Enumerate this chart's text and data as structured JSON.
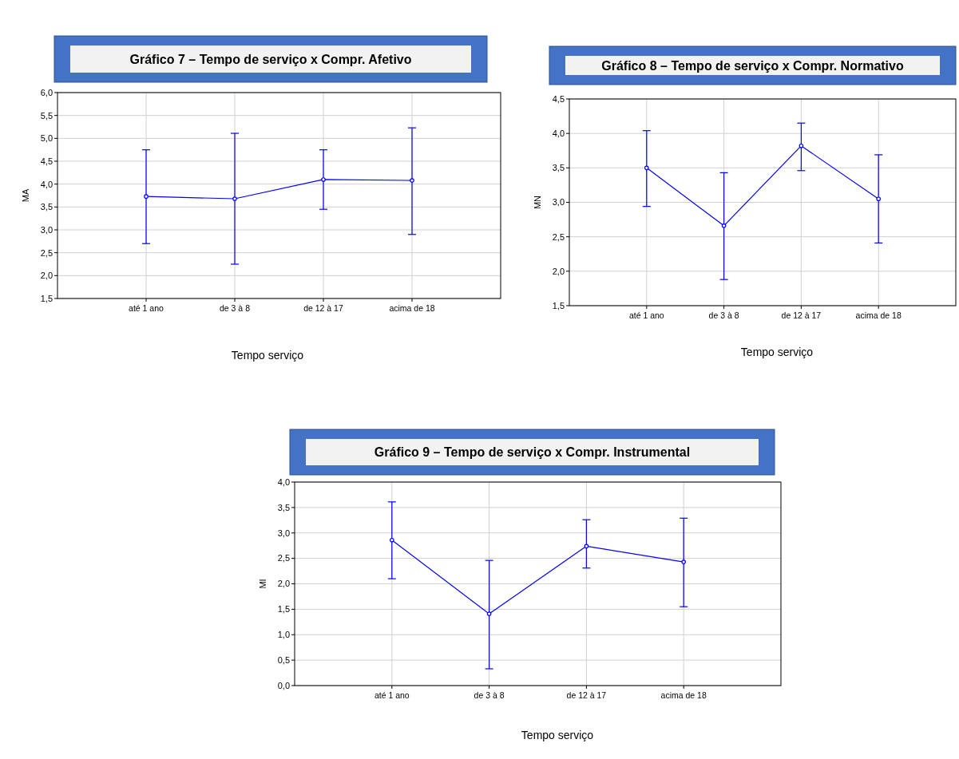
{
  "chart_data": [
    {
      "type": "line",
      "title": "Gráfico 7 – Tempo de serviço x Compr. Afetivo",
      "xlabel": "Tempo serviço",
      "ylabel": "MA",
      "categories": [
        "até 1 ano",
        "de 3 à 8",
        "de 12 à 17",
        "acima de 18"
      ],
      "series": [
        {
          "color": "#0000ff",
          "values": [
            3.73,
            3.68,
            4.1,
            4.08
          ],
          "errors": [
            [
              2.7,
              4.75
            ],
            [
              2.25,
              5.11
            ],
            [
              3.45,
              4.75
            ],
            [
              2.9,
              5.23
            ]
          ]
        }
      ],
      "ylim": [
        1.5,
        6.0
      ],
      "yticks": [
        {
          "value": 1.5,
          "label": "1,5"
        },
        {
          "value": 2,
          "label": "2,0"
        },
        {
          "value": 2.5,
          "label": "2,5"
        },
        {
          "value": 3,
          "label": "3,0"
        },
        {
          "value": 3.5,
          "label": "3,5"
        },
        {
          "value": 4,
          "label": "4,0"
        },
        {
          "value": 4.5,
          "label": "4,5"
        },
        {
          "value": 5,
          "label": "5,0"
        },
        {
          "value": 5.5,
          "label": "5,5"
        },
        {
          "value": 6,
          "label": "6,0"
        }
      ],
      "grid": true,
      "marker": "circle"
    },
    {
      "type": "line",
      "title": "Gráfico 8 – Tempo de serviço x Compr. Normativo",
      "xlabel": "Tempo serviço",
      "ylabel": "MN",
      "categories": [
        "até 1 ano",
        "de 3 à 8",
        "de 12 à 17",
        "acima de 18"
      ],
      "series": [
        {
          "color": "#0000ff",
          "values": [
            3.5,
            2.66,
            3.82,
            3.05
          ],
          "errors": [
            [
              2.94,
              4.04
            ],
            [
              1.88,
              3.43
            ],
            [
              3.46,
              4.15
            ],
            [
              2.41,
              3.69
            ]
          ]
        }
      ],
      "ylim": [
        1.5,
        4.5
      ],
      "yticks": [
        {
          "value": 1.5,
          "label": "1,5"
        },
        {
          "value": 2,
          "label": "2,0"
        },
        {
          "value": 2.5,
          "label": "2,5"
        },
        {
          "value": 3,
          "label": "3,0"
        },
        {
          "value": 3.5,
          "label": "3,5"
        },
        {
          "value": 4,
          "label": "4,0"
        },
        {
          "value": 4.5,
          "label": "4,5"
        }
      ],
      "grid": true,
      "marker": "circle"
    },
    {
      "type": "line",
      "title": "Gráfico 9 – Tempo de serviço x Compr. Instrumental",
      "xlabel": "Tempo serviço",
      "ylabel": "MI",
      "categories": [
        "até 1 ano",
        "de 3 à 8",
        "de 12 à 17",
        "acima de 18"
      ],
      "series": [
        {
          "color": "#0000ff",
          "values": [
            2.86,
            1.41,
            2.74,
            2.43
          ],
          "errors": [
            [
              2.1,
              3.61
            ],
            [
              0.33,
              2.46
            ],
            [
              2.31,
              3.26
            ],
            [
              1.55,
              3.29
            ]
          ]
        }
      ],
      "ylim": [
        0,
        4.0
      ],
      "yticks": [
        {
          "value": 0,
          "label": "0,0"
        },
        {
          "value": 0.5,
          "label": "0,5"
        },
        {
          "value": 1,
          "label": "1,0"
        },
        {
          "value": 1.5,
          "label": "1,5"
        },
        {
          "value": 2,
          "label": "2,0"
        },
        {
          "value": 2.5,
          "label": "2,5"
        },
        {
          "value": 3,
          "label": "3,0"
        },
        {
          "value": 3.5,
          "label": "3,5"
        },
        {
          "value": 4,
          "label": "4,0"
        }
      ],
      "grid": true,
      "marker": "circle"
    }
  ]
}
